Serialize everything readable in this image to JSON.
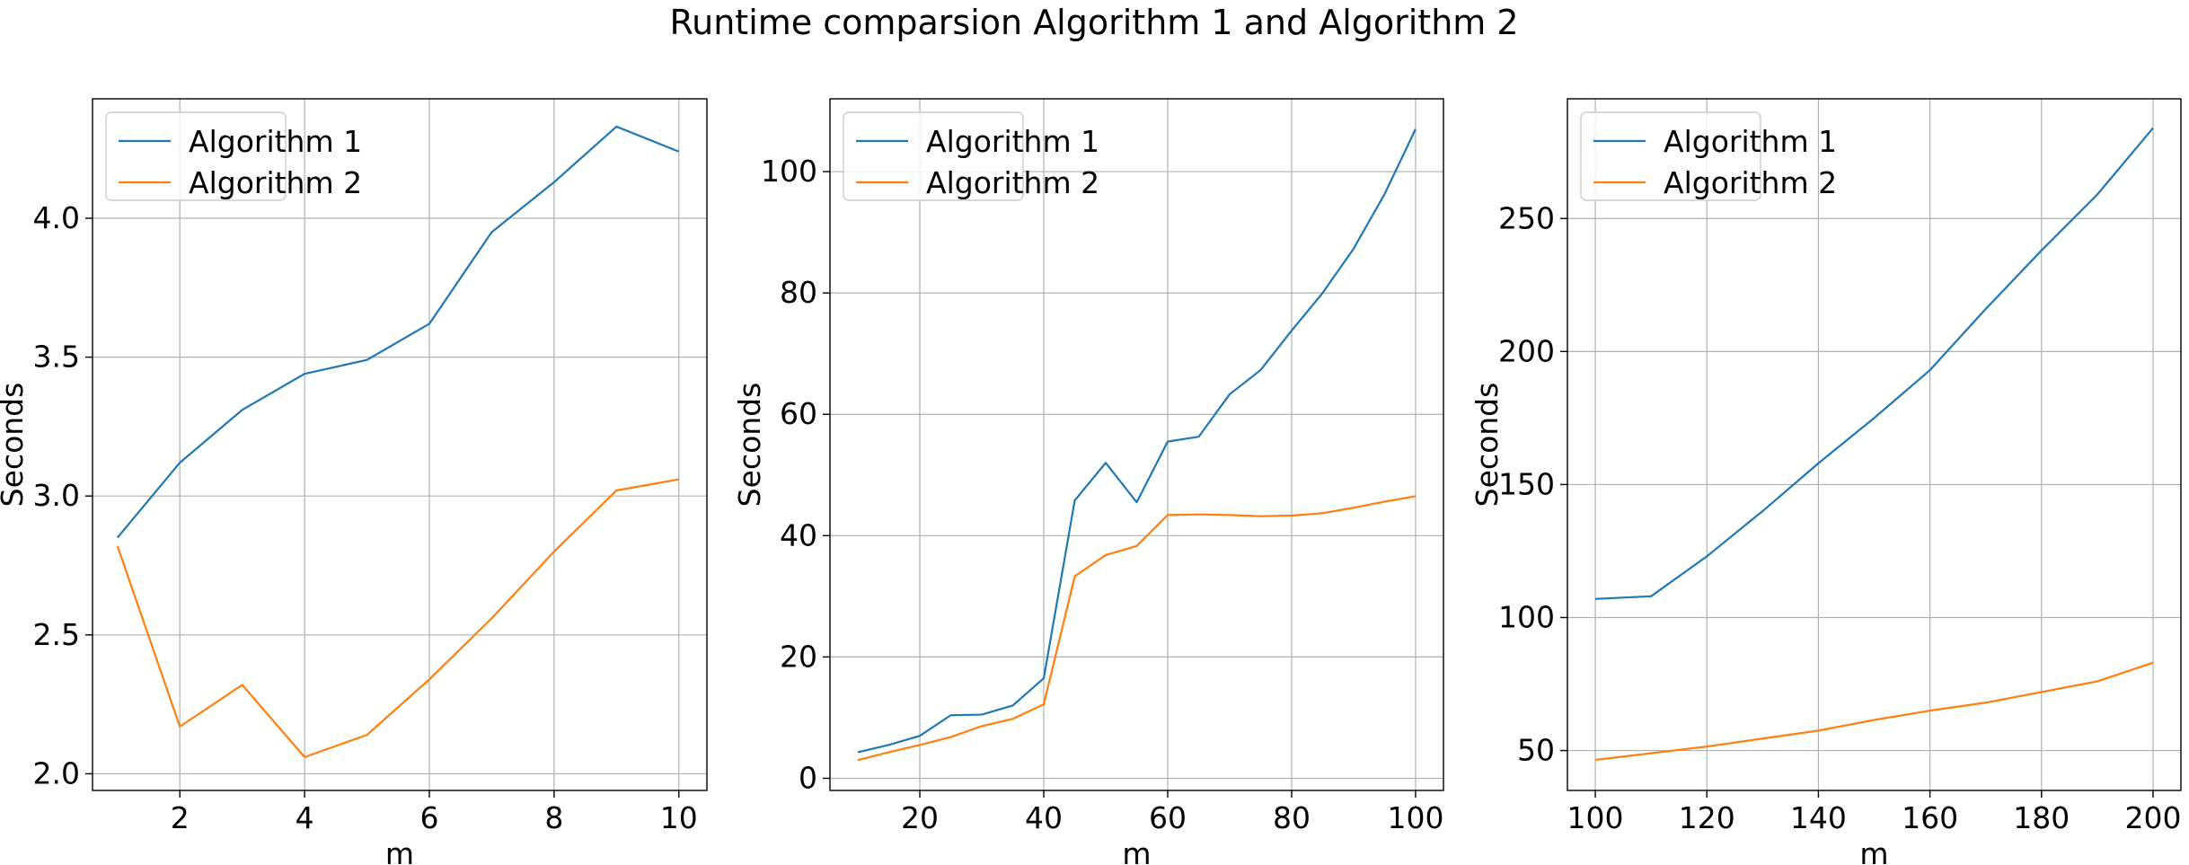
{
  "title": "Runtime comparsion Algorithm 1 and Algorithm 2",
  "colors": {
    "series_1": "#1f77b4",
    "series_2": "#ff7f0e",
    "grid": "#b0b0b0"
  },
  "chart_data": [
    {
      "type": "line",
      "xlabel": "m",
      "ylabel": "Seconds",
      "grid": true,
      "legend": "top-left",
      "xlim": [
        0.6,
        10.45
      ],
      "ylim": [
        1.94,
        4.43
      ],
      "xticks": [
        2,
        4,
        6,
        8,
        10
      ],
      "xtick_labels": [
        "2",
        "4",
        "6",
        "8",
        "10"
      ],
      "yticks": [
        2.0,
        2.5,
        3.0,
        3.5,
        4.0
      ],
      "ytick_labels": [
        "2.0",
        "2.5",
        "3.0",
        "3.5",
        "4.0"
      ],
      "x": [
        1,
        2,
        3,
        4,
        5,
        6,
        7,
        8,
        9,
        10
      ],
      "series": [
        {
          "name": "Algorithm 1",
          "values": [
            2.85,
            3.12,
            3.31,
            3.44,
            3.49,
            3.62,
            3.95,
            4.13,
            4.33,
            4.24
          ]
        },
        {
          "name": "Algorithm 2",
          "values": [
            2.82,
            2.17,
            2.32,
            2.06,
            2.14,
            2.34,
            2.56,
            2.8,
            3.02,
            3.06
          ]
        }
      ]
    },
    {
      "type": "line",
      "xlabel": "m",
      "ylabel": "Seconds",
      "grid": true,
      "legend": "top-left",
      "xlim": [
        5.5,
        104.5
      ],
      "ylim": [
        -2,
        112
      ],
      "xticks": [
        20,
        40,
        60,
        80,
        100
      ],
      "xtick_labels": [
        "20",
        "40",
        "60",
        "80",
        "100"
      ],
      "yticks": [
        0,
        20,
        40,
        60,
        80,
        100
      ],
      "ytick_labels": [
        "0",
        "20",
        "40",
        "60",
        "80",
        "100"
      ],
      "x": [
        10,
        15,
        20,
        25,
        30,
        35,
        40,
        45,
        50,
        55,
        60,
        65,
        70,
        75,
        80,
        85,
        90,
        95,
        100
      ],
      "series": [
        {
          "name": "Algorithm 1",
          "values": [
            4.3,
            5.5,
            7.0,
            10.4,
            10.5,
            12.0,
            16.5,
            45.8,
            52.0,
            45.5,
            55.5,
            56.3,
            63.3,
            67.3,
            73.8,
            80.0,
            87.3,
            96.3,
            107.0
          ]
        },
        {
          "name": "Algorithm 2",
          "values": [
            3.0,
            4.3,
            5.5,
            6.8,
            8.6,
            9.8,
            12.2,
            33.3,
            36.8,
            38.3,
            43.4,
            43.5,
            43.4,
            43.2,
            43.3,
            43.7,
            44.6,
            45.6,
            46.5
          ]
        }
      ]
    },
    {
      "type": "line",
      "xlabel": "m",
      "ylabel": "Seconds",
      "grid": true,
      "legend": "top-left",
      "xlim": [
        95,
        205
      ],
      "ylim": [
        35,
        295
      ],
      "xticks": [
        100,
        120,
        140,
        160,
        180,
        200
      ],
      "xtick_labels": [
        "100",
        "120",
        "140",
        "160",
        "180",
        "200"
      ],
      "yticks": [
        50,
        100,
        150,
        200,
        250
      ],
      "ytick_labels": [
        "50",
        "100",
        "150",
        "200",
        "250"
      ],
      "x": [
        100,
        110,
        120,
        130,
        140,
        150,
        160,
        170,
        180,
        190,
        200
      ],
      "series": [
        {
          "name": "Algorithm 1",
          "values": [
            107,
            108,
            123,
            140,
            158,
            175,
            193,
            216,
            238,
            259,
            284
          ]
        },
        {
          "name": "Algorithm 2",
          "values": [
            46.5,
            49,
            51.5,
            54.5,
            57.5,
            61.5,
            65,
            68,
            72,
            76,
            83
          ]
        }
      ]
    }
  ]
}
